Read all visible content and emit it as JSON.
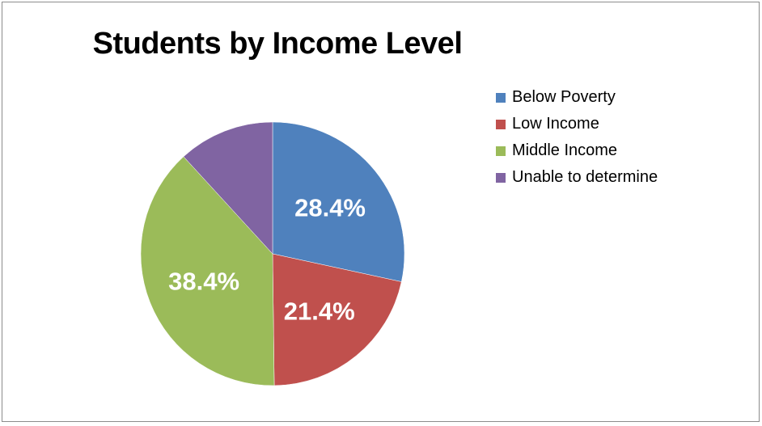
{
  "chart_data": {
    "type": "pie",
    "title": "Students by Income Level",
    "categories": [
      "Below Poverty",
      "Low Income",
      "Middle Income",
      "Unable to determine"
    ],
    "values": [
      28.4,
      21.4,
      38.4,
      11.8
    ],
    "data_labels": [
      "28.4%",
      "21.4%",
      "38.4%",
      ""
    ],
    "colors": [
      "#4f81bd",
      "#c0504d",
      "#9bbb59",
      "#8064a2"
    ],
    "legend_position": "right"
  }
}
